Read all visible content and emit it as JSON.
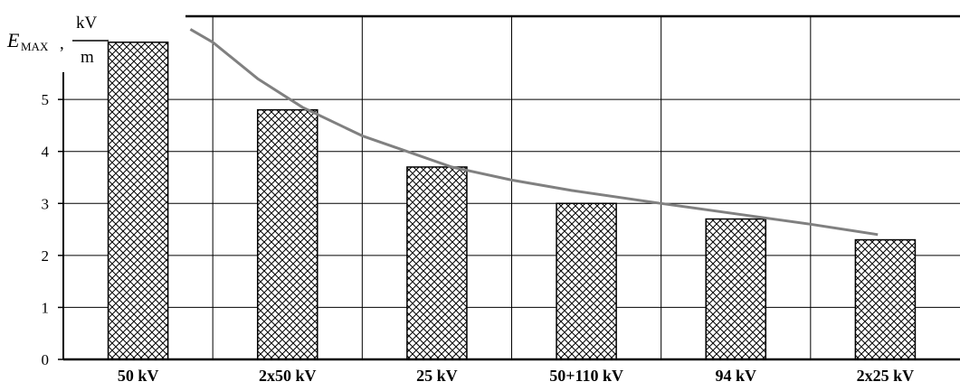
{
  "chart_data": {
    "type": "bar",
    "title": "",
    "xlabel": "",
    "ylabel": {
      "symbol": "E",
      "subscript": "MAX",
      "separator": ",",
      "unit_numerator": "kV",
      "unit_denominator": "m"
    },
    "categories": [
      "50 kV",
      "2x50 kV",
      "25 kV",
      "50+110 kV",
      "94 kV",
      "2x25 kV"
    ],
    "values": [
      6.1,
      4.8,
      3.7,
      3.0,
      2.7,
      2.3
    ],
    "trend_line": {
      "x": [
        0.85,
        1.0,
        1.3,
        1.6,
        2.0,
        2.3,
        2.6,
        3.0,
        3.4,
        4.0,
        4.5,
        5.0,
        5.45
      ],
      "y": [
        6.35,
        6.1,
        5.4,
        4.85,
        4.3,
        4.0,
        3.7,
        3.45,
        3.25,
        3.0,
        2.8,
        2.6,
        2.4
      ]
    },
    "yticks": [
      0,
      1,
      2,
      3,
      4,
      5
    ],
    "ylim": [
      0,
      6.6
    ],
    "grid": true,
    "colors": {
      "bar_fill": "#ffffff",
      "hatch": "#000000",
      "trend": "#808080",
      "grid": "#000000"
    }
  }
}
